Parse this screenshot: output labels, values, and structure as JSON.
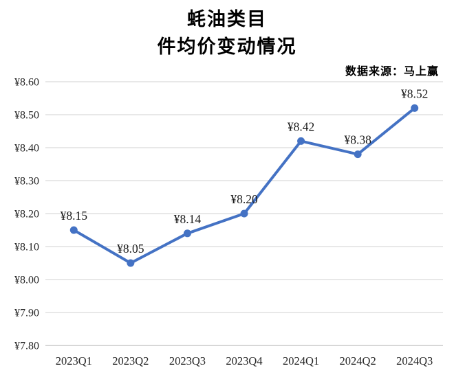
{
  "chart_data": {
    "type": "line",
    "title_lines": [
      "蚝油类目",
      "件均价变动情况"
    ],
    "source_note": "数据来源：马上赢",
    "categories": [
      "2023Q1",
      "2023Q2",
      "2023Q3",
      "2023Q4",
      "2024Q1",
      "2024Q2",
      "2024Q3"
    ],
    "values": [
      8.15,
      8.05,
      8.14,
      8.2,
      8.42,
      8.38,
      8.52
    ],
    "point_labels": [
      "¥8.15",
      "¥8.05",
      "¥8.14",
      "¥8.20",
      "¥8.42",
      "¥8.38",
      "¥8.52"
    ],
    "xlabel": "",
    "ylabel": "",
    "ylim": [
      7.8,
      8.6
    ],
    "ytick_step": 0.1,
    "yticks": [
      {
        "value": 8.6,
        "label": "¥8.60"
      },
      {
        "value": 8.5,
        "label": "¥8.50"
      },
      {
        "value": 8.4,
        "label": "¥8.40"
      },
      {
        "value": 8.3,
        "label": "¥8.30"
      },
      {
        "value": 8.2,
        "label": "¥8.20"
      },
      {
        "value": 8.1,
        "label": "¥8.10"
      },
      {
        "value": 8.0,
        "label": "¥8.00"
      },
      {
        "value": 7.9,
        "label": "¥7.90"
      },
      {
        "value": 7.8,
        "label": "¥7.80"
      }
    ],
    "grid": true,
    "legend": "none",
    "marker": "circle",
    "data_labels_position": "above",
    "line_color": "#4472C4",
    "gridline_color": "#D9D9D9",
    "axis_line_color": "#BFBFBF",
    "tick_label_color": "#262626",
    "data_label_color": "#1A1A1A",
    "background_color": "#FFFFFF"
  }
}
